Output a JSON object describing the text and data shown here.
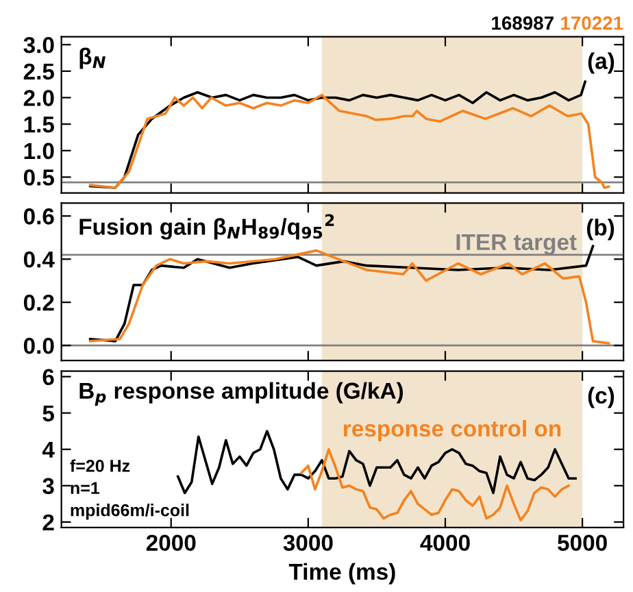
{
  "chart_data": [
    {
      "type": "line",
      "title": "β$_{N}$",
      "xlim": [
        1200,
        5300
      ],
      "ylim": [
        0.2,
        3.15
      ],
      "xticks": [
        2000,
        3000,
        4000,
        5000
      ],
      "yticks": [
        0.5,
        {
          "value": 1,
          "label": "1.0"
        },
        1.5,
        {
          "value": 2,
          "label": "2.0"
        },
        2.5,
        {
          "value": 3,
          "label": "3.0"
        }
      ],
      "tick_labels": "y",
      "legend": "top right",
      "annotations": [
        "(a)"
      ],
      "bands": [
        {
          "axis": "x",
          "from": 3100,
          "to": 5000,
          "color": "#f2e4cc"
        }
      ],
      "ref_lines": [
        {
          "axis": "y",
          "value": 0.4,
          "color": "#808080"
        }
      ],
      "series": [
        {
          "name": "168987",
          "color": "#000000",
          "x": [
            1410,
            1593,
            1660,
            1760,
            1860,
            1993,
            2093,
            2193,
            2300,
            2400,
            2500,
            2600,
            2700,
            2800,
            2900,
            3000,
            3100,
            3200,
            3300,
            3400,
            3500,
            3600,
            3700,
            3800,
            3900,
            4000,
            4100,
            4200,
            4300,
            4400,
            4500,
            4600,
            4700,
            4800,
            4900,
            4990,
            5020
          ],
          "values": [
            0.33,
            0.3,
            0.5,
            1.3,
            1.6,
            1.85,
            2.0,
            2.1,
            2.0,
            2.05,
            1.95,
            2.05,
            2.0,
            2.0,
            2.05,
            1.95,
            2.0,
            2.0,
            1.95,
            2.05,
            2.0,
            2.05,
            2.0,
            1.95,
            2.05,
            1.95,
            2.05,
            1.9,
            2.1,
            1.95,
            2.05,
            1.95,
            2.0,
            2.1,
            1.95,
            2.05,
            2.3
          ]
        },
        {
          "name": "170221",
          "color": "#f5821f",
          "x": [
            1410,
            1593,
            1693,
            1827,
            1960,
            2027,
            2093,
            2160,
            2227,
            2293,
            2400,
            2500,
            2600,
            2700,
            2800,
            2900,
            3000,
            3100,
            3227,
            3427,
            3493,
            3600,
            3700,
            3760,
            3793,
            3860,
            3960,
            4127,
            4293,
            4493,
            4627,
            4760,
            4893,
            4993,
            5043,
            5093,
            5143,
            5160,
            5193
          ],
          "values": [
            0.35,
            0.3,
            0.6,
            1.6,
            1.7,
            2.0,
            1.85,
            2.0,
            1.8,
            2.0,
            1.85,
            1.9,
            1.8,
            1.9,
            1.85,
            1.95,
            1.9,
            2.05,
            1.75,
            1.65,
            1.58,
            1.6,
            1.65,
            1.65,
            1.75,
            1.6,
            1.55,
            1.75,
            1.6,
            1.8,
            1.65,
            1.85,
            1.65,
            1.7,
            1.5,
            0.5,
            0.4,
            0.3,
            0.32
          ]
        }
      ]
    },
    {
      "type": "line",
      "title": "Fusion gain β$_{N}$H$_{89}$/q$_{95}$$^{2}$",
      "xlim": [
        1200,
        5300
      ],
      "ylim": [
        -0.07,
        0.66
      ],
      "xticks": [
        2000,
        3000,
        4000,
        5000
      ],
      "yticks": [
        {
          "value": 0,
          "label": "0.0"
        },
        0.2,
        0.4,
        0.6
      ],
      "tick_labels": "y",
      "annotations": [
        "(b)"
      ],
      "bands": [
        {
          "axis": "x",
          "from": 3100,
          "to": 5000,
          "color": "#f2e4cc"
        }
      ],
      "ref_lines": [
        {
          "axis": "y",
          "value": 0.42,
          "label": "ITER target",
          "color": "#808080"
        },
        {
          "axis": "y",
          "value": 0,
          "color": "#808080"
        }
      ],
      "series": [
        {
          "color": "#000000",
          "x": [
            1410,
            1593,
            1660,
            1727,
            1793,
            1860,
            1927,
            2093,
            2193,
            2427,
            2593,
            2927,
            3060,
            3260,
            3427,
            3760,
            4093,
            4427,
            4760,
            5027,
            5077
          ],
          "values": [
            0.03,
            0.02,
            0.1,
            0.28,
            0.28,
            0.35,
            0.37,
            0.36,
            0.4,
            0.36,
            0.38,
            0.41,
            0.37,
            0.39,
            0.37,
            0.36,
            0.35,
            0.36,
            0.35,
            0.37,
            0.46
          ]
        },
        {
          "color": "#f5821f",
          "x": [
            1410,
            1627,
            1693,
            1793,
            1893,
            1993,
            2093,
            2260,
            2427,
            2760,
            3060,
            3260,
            3427,
            3693,
            3760,
            3860,
            4093,
            4260,
            4460,
            4560,
            4727,
            4860,
            4977,
            5027,
            5077,
            5193
          ],
          "values": [
            0.02,
            0.03,
            0.1,
            0.28,
            0.37,
            0.4,
            0.38,
            0.39,
            0.38,
            0.4,
            0.44,
            0.39,
            0.35,
            0.33,
            0.38,
            0.3,
            0.38,
            0.33,
            0.38,
            0.33,
            0.38,
            0.31,
            0.32,
            0.2,
            0.02,
            0.01
          ]
        }
      ]
    },
    {
      "type": "line",
      "title": "B$_{p}$ response amplitude (G/kA)",
      "xlabel": "Time (ms)",
      "xlim": [
        1200,
        5300
      ],
      "ylim": [
        1.85,
        6.15
      ],
      "xticks": [
        2000,
        3000,
        4000,
        5000
      ],
      "yticks": [
        2,
        3,
        4,
        5,
        6
      ],
      "annotations": [
        "(c)",
        "f=20 Hz\nn=1\nmpid66m/i-coil"
      ],
      "bands": [
        {
          "axis": "x",
          "from": 3100,
          "to": 5000,
          "label": "response control on",
          "color": "#f2e4cc"
        }
      ],
      "series": [
        {
          "color": "#000000",
          "x": [
            2050,
            2100,
            2150,
            2200,
            2250,
            2300,
            2350,
            2400,
            2450,
            2500,
            2550,
            2600,
            2650,
            2700,
            2750,
            2800,
            2850,
            2900,
            2950,
            3000,
            3050,
            3100,
            3150,
            3200,
            3250,
            3300,
            3350,
            3400,
            3450,
            3500,
            3550,
            3600,
            3650,
            3700,
            3750,
            3800,
            3850,
            3900,
            3950,
            4000,
            4050,
            4100,
            4150,
            4200,
            4250,
            4300,
            4350,
            4400,
            4450,
            4500,
            4550,
            4600,
            4650,
            4700,
            4750,
            4800,
            4850,
            4900,
            4950
          ],
          "values": [
            3.25,
            2.8,
            3.1,
            4.35,
            3.7,
            3.05,
            3.5,
            4.25,
            3.6,
            3.8,
            3.55,
            3.9,
            4.0,
            4.5,
            4.0,
            3.2,
            2.9,
            3.3,
            3.3,
            3.2,
            3.4,
            3.7,
            3.2,
            3.2,
            3.25,
            3.95,
            3.7,
            3.6,
            3.0,
            3.5,
            3.5,
            3.5,
            3.7,
            3.3,
            3.2,
            3.5,
            3.2,
            3.55,
            3.65,
            3.9,
            4.0,
            3.9,
            3.6,
            3.55,
            3.4,
            3.35,
            2.8,
            3.8,
            3.3,
            3.2,
            3.65,
            3.2,
            3.15,
            3.3,
            3.5,
            4.0,
            3.6,
            3.2,
            3.2
          ]
        },
        {
          "color": "#f5821f",
          "x": [
            2950,
            3000,
            3050,
            3100,
            3150,
            3200,
            3250,
            3300,
            3350,
            3400,
            3450,
            3500,
            3550,
            3600,
            3650,
            3700,
            3750,
            3800,
            3850,
            3900,
            3950,
            4000,
            4050,
            4100,
            4150,
            4200,
            4250,
            4300,
            4350,
            4400,
            4450,
            4500,
            4550,
            4600,
            4650,
            4700,
            4750,
            4800,
            4850,
            4900
          ],
          "values": [
            3.35,
            3.55,
            2.9,
            3.4,
            4.0,
            3.5,
            2.95,
            3.0,
            2.9,
            2.85,
            2.4,
            2.35,
            2.1,
            2.2,
            2.25,
            2.6,
            2.85,
            2.5,
            2.35,
            2.2,
            2.25,
            2.6,
            2.9,
            2.85,
            2.6,
            2.45,
            2.7,
            2.1,
            2.2,
            2.4,
            3.0,
            2.5,
            2.05,
            2.3,
            2.8,
            2.95,
            2.9,
            2.7,
            2.9,
            3.0
          ]
        }
      ]
    }
  ]
}
